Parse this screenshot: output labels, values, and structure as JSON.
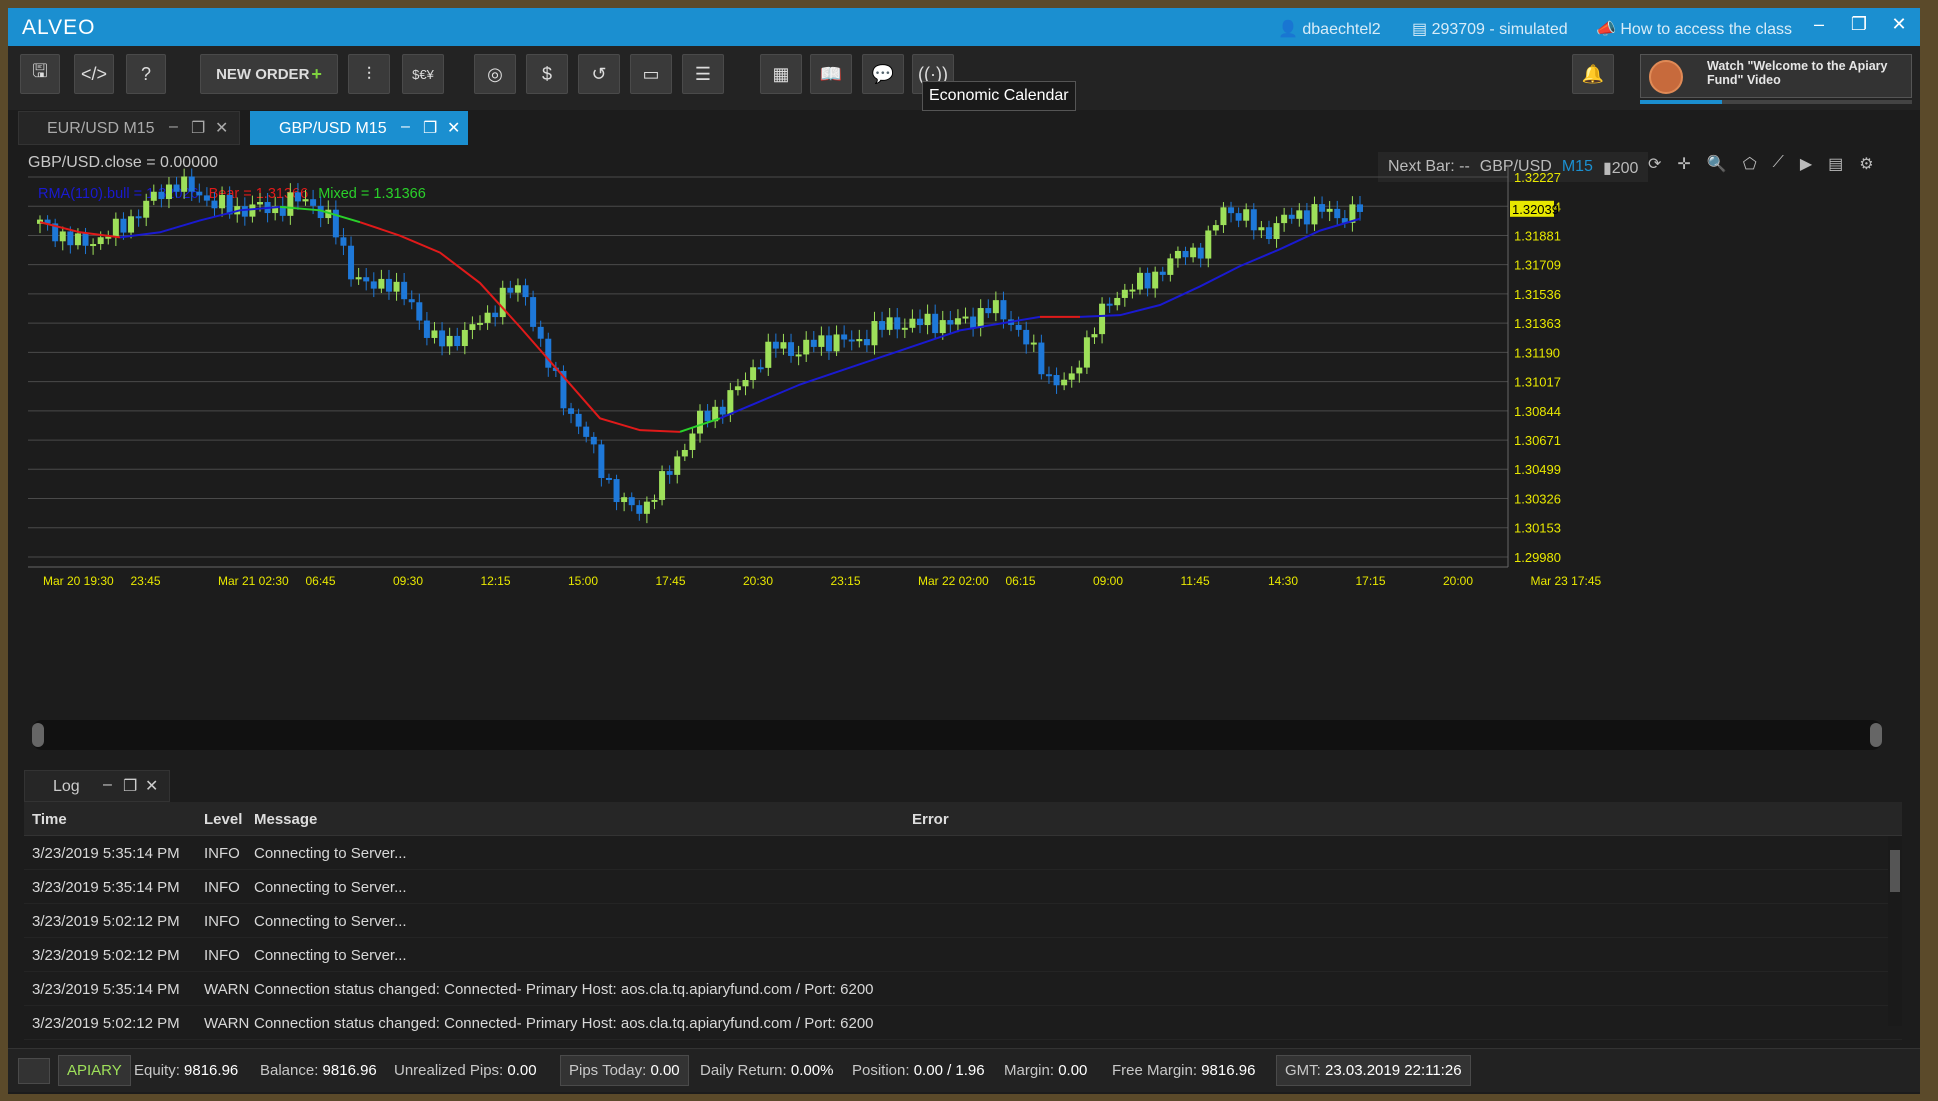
{
  "window": {
    "app_name": "ALVEO",
    "user": "dbaechtel2",
    "account": "293709 - simulated",
    "help_link": "How to access the class"
  },
  "toolbar": {
    "new_order_label": "NEW ORDER",
    "tooltip": "Economic Calendar",
    "promo_text": "Watch \"Welcome to the Apiary Fund\" Video",
    "promo_progress": 0.3
  },
  "tabs": [
    {
      "label": "EUR/USD M15",
      "active": false
    },
    {
      "label": "GBP/USD M15",
      "active": true
    }
  ],
  "chart": {
    "info": "GBP/USD.close = 0.00000",
    "legend": {
      "bull": "RMA(110).bull = 1.32026",
      "bear": "Bear = 1.31366",
      "mixed": "Mixed = 1.31366"
    },
    "next_bar": "Next Bar: --",
    "symbol": "GBP/USD",
    "timeframe": "M15",
    "bars": "200",
    "colors": {
      "bull_candle": "#9ee05a",
      "bear_candle": "#1e78d8",
      "ma_bull": "#1a1ad0",
      "ma_bear": "#e01a1a",
      "ma_mixed": "#2ad02a",
      "axis_text": "#e8e800"
    }
  },
  "chart_data": {
    "type": "line",
    "title": "",
    "y_ticks": [
      "1.32227",
      "1.32054",
      "1.31881",
      "1.31709",
      "1.31536",
      "1.31363",
      "1.31190",
      "1.31017",
      "1.30844",
      "1.30671",
      "1.30499",
      "1.30326",
      "1.30153",
      "1.29980"
    ],
    "x_ticks": [
      "Mar 20 19:30",
      "23:45",
      "Mar 21 02:30",
      "06:45",
      "09:30",
      "12:15",
      "15:00",
      "17:45",
      "20:30",
      "23:15",
      "Mar 22 02:00",
      "06:15",
      "09:00",
      "11:45",
      "14:30",
      "17:15",
      "20:00",
      "Mar 23 17:45"
    ],
    "last_price": "1.32039",
    "ylim": [
      1.2998,
      1.32227
    ],
    "price_path": [
      1.3195,
      1.3189,
      1.3183,
      1.3186,
      1.3192,
      1.3201,
      1.3212,
      1.3219,
      1.3214,
      1.3207,
      1.3203,
      1.3205,
      1.3203,
      1.3209,
      1.3208,
      1.3196,
      1.3168,
      1.3156,
      1.3162,
      1.3148,
      1.3131,
      1.3122,
      1.3134,
      1.3137,
      1.3158,
      1.3152,
      1.3118,
      1.3089,
      1.3072,
      1.3048,
      1.3029,
      1.3026,
      1.3041,
      1.306,
      1.3079,
      1.3086,
      1.3098,
      1.3114,
      1.3124,
      1.3119,
      1.3125,
      1.3127,
      1.3124,
      1.3133,
      1.3136,
      1.3136,
      1.3137,
      1.3136,
      1.3139,
      1.3146,
      1.3138,
      1.3122,
      1.3104,
      1.3099,
      1.3128,
      1.3147,
      1.3158,
      1.316,
      1.3171,
      1.3178,
      1.3181,
      1.3205,
      1.3199,
      1.3189,
      1.3197,
      1.3201,
      1.3203,
      1.3199,
      1.3204
    ],
    "ma_path": [
      1.3196,
      1.319,
      1.3187,
      1.319,
      1.3197,
      1.3203,
      1.3205,
      1.3203,
      1.3196,
      1.3188,
      1.3178,
      1.316,
      1.3134,
      1.3107,
      1.308,
      1.3073,
      1.3072,
      1.308,
      1.309,
      1.31,
      1.3108,
      1.3116,
      1.3124,
      1.3132,
      1.3136,
      1.314,
      1.314,
      1.3141,
      1.3147,
      1.3158,
      1.317,
      1.318,
      1.3191,
      1.3198
    ],
    "ma_segments": [
      {
        "kind": "bear",
        "from": 0,
        "to": 2
      },
      {
        "kind": "bull",
        "from": 2,
        "to": 6
      },
      {
        "kind": "mixed",
        "from": 6,
        "to": 8
      },
      {
        "kind": "bear",
        "from": 8,
        "to": 16
      },
      {
        "kind": "mixed",
        "from": 16,
        "to": 17
      },
      {
        "kind": "bull",
        "from": 17,
        "to": 25
      },
      {
        "kind": "bear",
        "from": 25,
        "to": 26
      },
      {
        "kind": "bull",
        "from": 26,
        "to": 33
      }
    ]
  },
  "log": {
    "tab_label": "Log",
    "columns": {
      "time": "Time",
      "level": "Level",
      "message": "Message",
      "error": "Error"
    },
    "rows": [
      {
        "time": "3/23/2019 5:35:14 PM",
        "level": "INFO",
        "message": "Connecting to Server..."
      },
      {
        "time": "3/23/2019 5:35:14 PM",
        "level": "INFO",
        "message": "Connecting to Server..."
      },
      {
        "time": "3/23/2019 5:02:12 PM",
        "level": "INFO",
        "message": "Connecting to Server..."
      },
      {
        "time": "3/23/2019 5:02:12 PM",
        "level": "INFO",
        "message": "Connecting to Server..."
      },
      {
        "time": "3/23/2019 5:35:14 PM",
        "level": "WARN",
        "message": "Connection status changed: Connected- Primary Host: aos.cla.tq.apiaryfund.com / Port: 6200"
      },
      {
        "time": "3/23/2019 5:02:12 PM",
        "level": "WARN",
        "message": "Connection status changed: Connected- Primary Host: aos.cla.tq.apiaryfund.com / Port: 6200"
      }
    ]
  },
  "status": {
    "brand": "APIARY",
    "equity_label": "Equity:",
    "equity": "9816.96",
    "balance_label": "Balance:",
    "balance": "9816.96",
    "upips_label": "Unrealized Pips:",
    "upips": "0.00",
    "ptoday_label": "Pips Today:",
    "ptoday": "0.00",
    "dret_label": "Daily Return:",
    "dret": "0.00%",
    "pos_label": "Position:",
    "pos": "0.00 / 1.96",
    "margin_label": "Margin:",
    "margin": "0.00",
    "fmargin_label": "Free Margin:",
    "fmargin": "9816.96",
    "gmt_label": "GMT:",
    "gmt": "23.03.2019 22:11:26"
  }
}
